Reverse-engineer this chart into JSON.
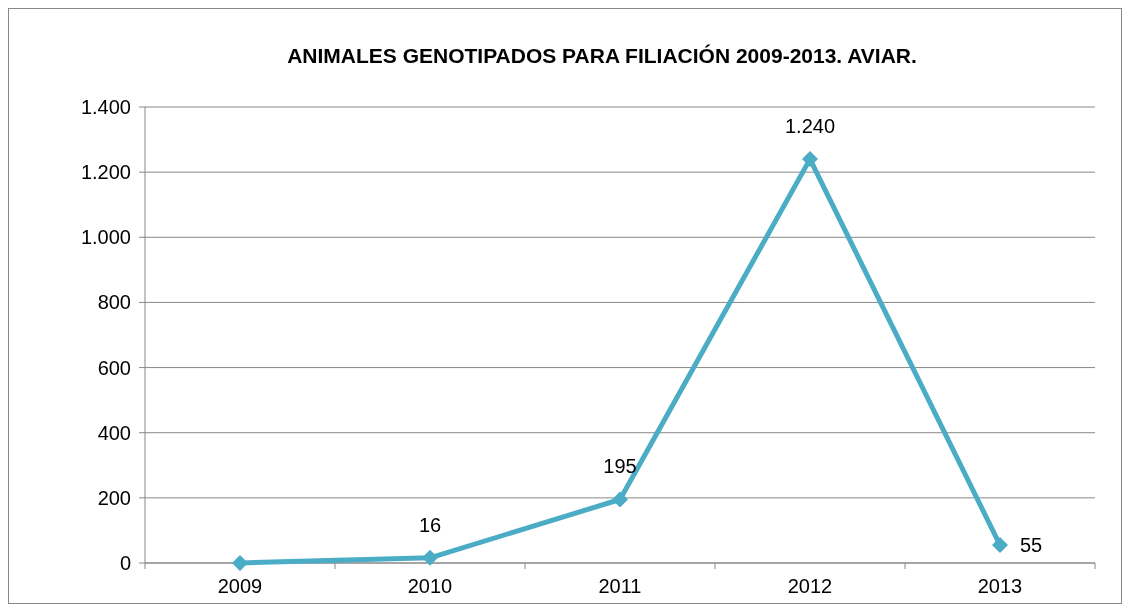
{
  "chart_data": {
    "type": "line",
    "title": "ANIMALES GENOTIPADOS PARA FILIACIÓN 2009-2013. AVIAR.",
    "categories": [
      "2009",
      "2010",
      "2011",
      "2012",
      "2013"
    ],
    "series": [
      {
        "color": "#4bacc6",
        "values": [
          0,
          16,
          195,
          1240,
          55
        ],
        "value_labels": [
          null,
          "16",
          "195",
          "1.240",
          "55"
        ]
      }
    ],
    "ylim": [
      0,
      1400
    ],
    "yticks": [
      0,
      200,
      400,
      600,
      800,
      {
        "value": 1000,
        "label": "1.000"
      },
      {
        "value": 1200,
        "label": "1.200"
      },
      {
        "value": 1400,
        "label": "1.400"
      }
    ],
    "grid": "y",
    "marker": "diamond",
    "line_style": "solid"
  }
}
